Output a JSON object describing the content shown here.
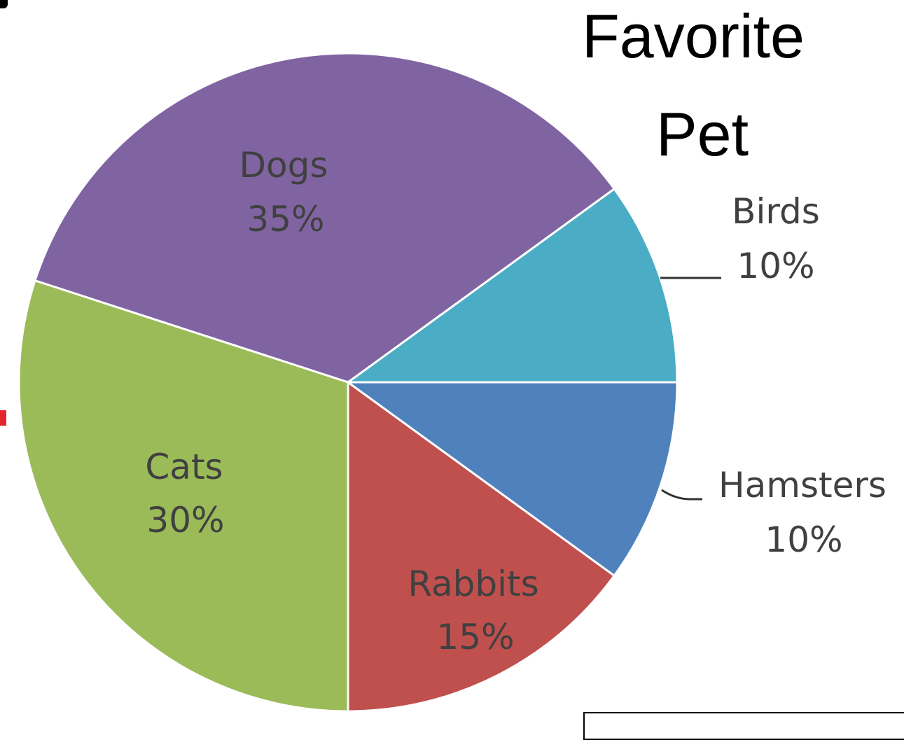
{
  "chart_data": {
    "type": "pie",
    "title_lines": [
      "Favorite",
      "Pet"
    ],
    "start": "3 o'clock, counter-clockwise",
    "slices": [
      {
        "label": "Birds",
        "percent": "10%",
        "value": 10,
        "color": "#4bacc6"
      },
      {
        "label": "Dogs",
        "percent": "35%",
        "value": 35,
        "color": "#8064a2"
      },
      {
        "label": "Cats",
        "percent": "30%",
        "value": 30,
        "color": "#9bbb59"
      },
      {
        "label": "Rabbits",
        "percent": "15%",
        "value": 15,
        "color": "#c0504d"
      },
      {
        "label": "Hamsters",
        "percent": "10%",
        "value": 10,
        "color": "#4f81bd"
      }
    ]
  }
}
